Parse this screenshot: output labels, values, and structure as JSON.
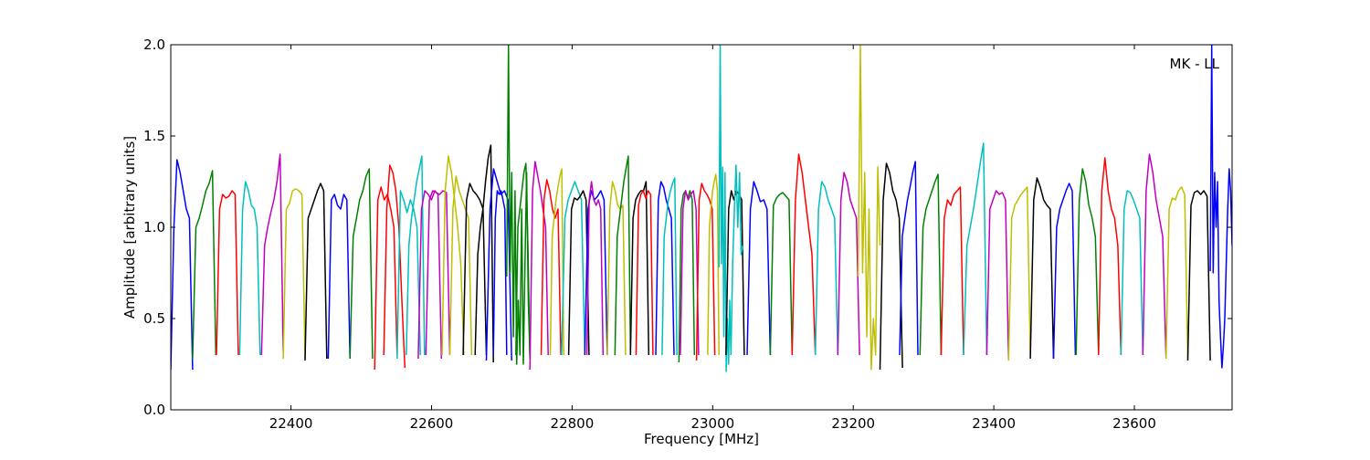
{
  "chart_data": {
    "type": "line",
    "title": "",
    "annotation": "MK - LL",
    "xlabel": "Frequency [MHz]",
    "ylabel": "Amplitude [arbitrary units]",
    "xlim": [
      22229,
      23739
    ],
    "ylim": [
      0.0,
      2.0
    ],
    "xticks": [
      22400,
      22600,
      22800,
      23000,
      23200,
      23400,
      23600
    ],
    "xtick_labels": [
      "22400",
      "22600",
      "22800",
      "23000",
      "23200",
      "23400",
      "23600"
    ],
    "yticks": [
      0.0,
      0.5,
      1.0,
      1.5,
      2.0
    ],
    "ytick_labels": [
      "0.0",
      "0.5",
      "1.0",
      "1.5",
      "2.0"
    ],
    "grid": false,
    "legend": "none",
    "colors": {
      "b": "#0000ff",
      "g": "#008000",
      "r": "#ff0000",
      "c": "#00bfbf",
      "m": "#bf00bf",
      "y": "#bfbf00",
      "k": "#000000"
    },
    "segments": [
      {
        "f0": 22229,
        "f1": 22260,
        "c": "b",
        "v": [
          0.22,
          1.0,
          1.37,
          1.3,
          1.2,
          1.1,
          1.05,
          0.22
        ]
      },
      {
        "f0": 22260,
        "f1": 22293,
        "c": "g",
        "v": [
          0.28,
          1.0,
          1.05,
          1.12,
          1.2,
          1.24,
          1.31,
          0.3
        ]
      },
      {
        "f0": 22294,
        "f1": 22325,
        "c": "r",
        "v": [
          0.3,
          1.1,
          1.18,
          1.16,
          1.17,
          1.2,
          1.18,
          0.3
        ]
      },
      {
        "f0": 22327,
        "f1": 22356,
        "c": "c",
        "v": [
          0.3,
          1.1,
          1.25,
          1.2,
          1.12,
          1.1,
          1.0,
          0.3
        ]
      },
      {
        "f0": 22358,
        "f1": 22389,
        "c": "m",
        "v": [
          0.3,
          0.9,
          1.0,
          1.08,
          1.15,
          1.25,
          1.4,
          0.32
        ]
      },
      {
        "f0": 22389,
        "f1": 22420,
        "c": "y",
        "v": [
          0.28,
          1.1,
          1.13,
          1.2,
          1.21,
          1.2,
          1.18,
          0.28
        ]
      },
      {
        "f0": 22420,
        "f1": 22451,
        "c": "k",
        "v": [
          0.27,
          1.05,
          1.1,
          1.15,
          1.2,
          1.24,
          1.2,
          0.28
        ]
      },
      {
        "f0": 22453,
        "f1": 22484,
        "c": "b",
        "v": [
          0.28,
          1.15,
          1.18,
          1.12,
          1.1,
          1.18,
          1.15,
          0.28
        ]
      },
      {
        "f0": 22484,
        "f1": 22516,
        "c": "g",
        "v": [
          0.28,
          0.95,
          1.05,
          1.15,
          1.2,
          1.28,
          1.32,
          0.28
        ]
      },
      {
        "f0": 22519,
        "f1": 22551,
        "c": "r",
        "v": [
          0.22,
          1.15,
          1.22,
          1.15,
          1.18,
          1.1,
          1.0,
          0.3
        ]
      },
      {
        "f0": 22532,
        "f1": 22562,
        "c": "r",
        "v": [
          0.3,
          1.1,
          1.34,
          1.3,
          1.2,
          1.0,
          0.6,
          0.23
        ]
      },
      {
        "f0": 22551,
        "f1": 22584,
        "c": "c",
        "v": [
          0.28,
          1.2,
          1.15,
          1.08,
          1.15,
          1.1,
          1.0,
          0.3
        ]
      },
      {
        "f0": 22564,
        "f1": 22590,
        "c": "c",
        "v": [
          0.3,
          0.9,
          1.05,
          1.15,
          1.25,
          1.32,
          1.39,
          0.3
        ]
      },
      {
        "f0": 22581,
        "f1": 22614,
        "c": "m",
        "v": [
          0.28,
          1.1,
          1.2,
          1.18,
          1.15,
          1.2,
          1.18,
          0.28
        ]
      },
      {
        "f0": 22592,
        "f1": 22626,
        "c": "m",
        "v": [
          0.3,
          1.15,
          1.2,
          1.19,
          1.18,
          1.2,
          1.19,
          0.3
        ]
      },
      {
        "f0": 22615,
        "f1": 22646,
        "c": "y",
        "v": [
          0.3,
          1.2,
          1.39,
          1.3,
          1.15,
          1.0,
          0.8,
          0.3
        ]
      },
      {
        "f0": 22626,
        "f1": 22657,
        "c": "y",
        "v": [
          0.3,
          1.1,
          1.28,
          1.2,
          1.15,
          1.1,
          1.05,
          0.3
        ]
      },
      {
        "f0": 22645,
        "f1": 22678,
        "c": "k",
        "v": [
          0.3,
          1.15,
          1.24,
          1.2,
          1.18,
          1.15,
          1.1,
          0.3
        ]
      },
      {
        "f0": 22662,
        "f1": 22688,
        "c": "k",
        "v": [
          0.3,
          0.85,
          1.0,
          1.1,
          1.25,
          1.38,
          1.45,
          0.26
        ]
      },
      {
        "f0": 22678,
        "f1": 22714,
        "c": "b",
        "v": [
          0.27,
          1.1,
          1.32,
          1.25,
          1.18,
          1.2,
          1.15,
          0.27
        ]
      },
      {
        "f0": 22688,
        "f1": 22707,
        "c": "b",
        "v": [
          0.3,
          1.05,
          1.2,
          1.18,
          1.2,
          1.15,
          1.1,
          0.3
        ]
      },
      {
        "f0": 22707,
        "f1": 22740,
        "c": "g",
        "v": [
          0.73,
          2.0,
          0.75,
          1.3,
          0.4,
          1.2,
          0.25,
          0.6,
          0.3,
          1.1,
          0.25,
          0.8,
          1.3,
          0.6,
          0.3
        ]
      },
      {
        "f0": 22720,
        "f1": 22740,
        "c": "g",
        "v": [
          0.3,
          1.0,
          1.1,
          1.2,
          1.3,
          1.35,
          0.9,
          0.28
        ]
      },
      {
        "f0": 22740,
        "f1": 22766,
        "c": "m",
        "v": [
          0.22,
          1.2,
          1.36,
          1.28,
          1.2,
          1.1,
          1.0,
          0.3
        ]
      },
      {
        "f0": 22756,
        "f1": 22784,
        "c": "r",
        "v": [
          0.3,
          1.15,
          1.26,
          1.2,
          1.1,
          1.05,
          1.1,
          0.3
        ]
      },
      {
        "f0": 22769,
        "f1": 22788,
        "c": "y",
        "v": [
          0.3,
          0.95,
          1.05,
          1.15,
          1.22,
          1.28,
          1.32,
          0.3
        ]
      },
      {
        "f0": 22785,
        "f1": 22818,
        "c": "c",
        "v": [
          0.3,
          1.05,
          1.15,
          1.2,
          1.25,
          1.2,
          1.15,
          0.3
        ]
      },
      {
        "f0": 22795,
        "f1": 22824,
        "c": "k",
        "v": [
          0.3,
          1.1,
          1.16,
          1.15,
          1.17,
          1.2,
          1.15,
          0.3
        ]
      },
      {
        "f0": 22818,
        "f1": 22850,
        "c": "b",
        "v": [
          0.3,
          1.1,
          1.2,
          1.15,
          1.17,
          1.2,
          1.15,
          0.3
        ]
      },
      {
        "f0": 22821,
        "f1": 22844,
        "c": "m",
        "v": [
          0.3,
          1.15,
          1.25,
          1.15,
          1.12,
          1.15,
          1.1,
          0.3
        ]
      },
      {
        "f0": 22850,
        "f1": 22876,
        "c": "y",
        "v": [
          0.3,
          1.1,
          1.25,
          1.2,
          1.12,
          1.1,
          1.12,
          0.3
        ]
      },
      {
        "f0": 22861,
        "f1": 22883,
        "c": "g",
        "v": [
          0.3,
          0.95,
          1.05,
          1.15,
          1.25,
          1.32,
          1.39,
          0.3
        ]
      },
      {
        "f0": 22883,
        "f1": 22909,
        "c": "k",
        "v": [
          0.3,
          1.05,
          1.15,
          1.18,
          1.2,
          1.2,
          1.25,
          0.3
        ]
      },
      {
        "f0": 22891,
        "f1": 22915,
        "c": "r",
        "v": [
          0.3,
          1.12,
          1.18,
          1.2,
          1.16,
          1.2,
          1.18,
          0.3
        ]
      },
      {
        "f0": 22919,
        "f1": 22945,
        "c": "b",
        "v": [
          0.3,
          1.15,
          1.25,
          1.22,
          1.15,
          1.1,
          1.05,
          0.3
        ]
      },
      {
        "f0": 22928,
        "f1": 22949,
        "c": "c",
        "v": [
          0.3,
          0.95,
          1.05,
          1.15,
          1.2,
          1.24,
          1.27,
          0.3
        ]
      },
      {
        "f0": 22952,
        "f1": 22974,
        "c": "g",
        "v": [
          0.26,
          1.1,
          1.18,
          1.2,
          1.16,
          1.2,
          1.15,
          0.3
        ]
      },
      {
        "f0": 22954,
        "f1": 22980,
        "c": "m",
        "v": [
          0.3,
          1.1,
          1.2,
          1.15,
          1.18,
          1.2,
          1.1,
          0.3
        ]
      },
      {
        "f0": 22977,
        "f1": 23003,
        "c": "r",
        "v": [
          0.27,
          1.15,
          1.24,
          1.2,
          1.18,
          1.15,
          1.1,
          0.3
        ]
      },
      {
        "f0": 22993,
        "f1": 23009,
        "c": "y",
        "v": [
          0.3,
          1.0,
          1.1,
          1.2,
          1.25,
          1.29,
          1.2,
          0.3
        ]
      },
      {
        "f0": 23009,
        "f1": 23026,
        "c": "c",
        "v": [
          0.78,
          2.0,
          0.8,
          1.33,
          0.4,
          1.3,
          0.21,
          0.5,
          0.25,
          0.6,
          0.3
        ]
      },
      {
        "f0": 23019,
        "f1": 23045,
        "c": "k",
        "v": [
          0.3,
          1.1,
          1.2,
          1.15,
          1.2,
          1.18,
          1.15,
          0.3
        ]
      },
      {
        "f0": 23026,
        "f1": 23043,
        "c": "c",
        "v": [
          0.3,
          0.8,
          1.1,
          1.34,
          1.0,
          1.3,
          0.85,
          0.9
        ]
      },
      {
        "f0": 23049,
        "f1": 23082,
        "c": "b",
        "v": [
          0.3,
          1.1,
          1.25,
          1.2,
          1.14,
          1.15,
          1.1,
          0.3
        ]
      },
      {
        "f0": 23082,
        "f1": 23113,
        "c": "g",
        "v": [
          0.3,
          1.12,
          1.16,
          1.18,
          1.19,
          1.17,
          1.15,
          0.3
        ]
      },
      {
        "f0": 23113,
        "f1": 23146,
        "c": "r",
        "v": [
          0.3,
          1.15,
          1.4,
          1.3,
          1.15,
          1.0,
          0.85,
          0.3
        ]
      },
      {
        "f0": 23146,
        "f1": 23178,
        "c": "c",
        "v": [
          0.3,
          1.1,
          1.25,
          1.22,
          1.15,
          1.1,
          1.05,
          0.3
        ]
      },
      {
        "f0": 23178,
        "f1": 23209,
        "c": "m",
        "v": [
          0.3,
          1.15,
          1.3,
          1.25,
          1.15,
          1.1,
          1.05,
          0.3
        ]
      },
      {
        "f0": 23207,
        "f1": 23238,
        "c": "y",
        "v": [
          0.73,
          2.0,
          0.75,
          1.3,
          0.4,
          1.1,
          0.22,
          0.5,
          0.3,
          1.33,
          0.9
        ]
      },
      {
        "f0": 23238,
        "f1": 23270,
        "c": "k",
        "v": [
          0.22,
          1.15,
          1.35,
          1.3,
          1.2,
          1.15,
          1.05,
          0.23
        ]
      },
      {
        "f0": 23266,
        "f1": 23292,
        "c": "b",
        "v": [
          0.3,
          0.95,
          1.05,
          1.15,
          1.22,
          1.3,
          1.36,
          0.3
        ]
      },
      {
        "f0": 23295,
        "f1": 23325,
        "c": "g",
        "v": [
          0.3,
          1.0,
          1.1,
          1.15,
          1.2,
          1.25,
          1.29,
          0.3
        ]
      },
      {
        "f0": 23325,
        "f1": 23357,
        "c": "r",
        "v": [
          0.3,
          1.05,
          1.15,
          1.12,
          1.18,
          1.2,
          1.22,
          0.3
        ]
      },
      {
        "f0": 23357,
        "f1": 23390,
        "c": "c",
        "v": [
          0.3,
          0.9,
          1.0,
          1.1,
          1.22,
          1.35,
          1.46,
          0.3
        ]
      },
      {
        "f0": 23390,
        "f1": 23421,
        "c": "m",
        "v": [
          0.3,
          1.1,
          1.15,
          1.2,
          1.18,
          1.19,
          1.15,
          0.27
        ]
      },
      {
        "f0": 23421,
        "f1": 23452,
        "c": "y",
        "v": [
          0.27,
          1.05,
          1.12,
          1.15,
          1.18,
          1.2,
          1.22,
          0.3
        ]
      },
      {
        "f0": 23452,
        "f1": 23485,
        "c": "k",
        "v": [
          0.28,
          1.15,
          1.27,
          1.22,
          1.15,
          1.12,
          1.1,
          0.28
        ]
      },
      {
        "f0": 23485,
        "f1": 23516,
        "c": "b",
        "v": [
          0.28,
          1.0,
          1.1,
          1.15,
          1.2,
          1.24,
          1.2,
          0.3
        ]
      },
      {
        "f0": 23517,
        "f1": 23549,
        "c": "g",
        "v": [
          0.3,
          1.15,
          1.32,
          1.25,
          1.12,
          1.05,
          0.95,
          0.3
        ]
      },
      {
        "f0": 23549,
        "f1": 23581,
        "c": "r",
        "v": [
          0.3,
          1.2,
          1.38,
          1.2,
          1.1,
          1.05,
          0.9,
          0.3
        ]
      },
      {
        "f0": 23581,
        "f1": 23612,
        "c": "c",
        "v": [
          0.3,
          1.1,
          1.2,
          1.19,
          1.15,
          1.1,
          1.05,
          0.3
        ]
      },
      {
        "f0": 23612,
        "f1": 23645,
        "c": "m",
        "v": [
          0.3,
          1.2,
          1.4,
          1.3,
          1.15,
          1.05,
          0.95,
          0.28
        ]
      },
      {
        "f0": 23645,
        "f1": 23676,
        "c": "y",
        "v": [
          0.28,
          1.1,
          1.16,
          1.15,
          1.2,
          1.22,
          1.18,
          0.27
        ]
      },
      {
        "f0": 23676,
        "f1": 23708,
        "c": "k",
        "v": [
          0.27,
          1.12,
          1.19,
          1.2,
          1.18,
          1.2,
          1.17,
          0.27
        ]
      },
      {
        "f0": 23708,
        "f1": 23739,
        "c": "b",
        "v": [
          0.76,
          2.0,
          0.75,
          1.3,
          1.0,
          1.25,
          0.6,
          0.4,
          0.23,
          0.35,
          0.5,
          0.8,
          1.1,
          1.32,
          1.2,
          0.9
        ]
      }
    ]
  }
}
